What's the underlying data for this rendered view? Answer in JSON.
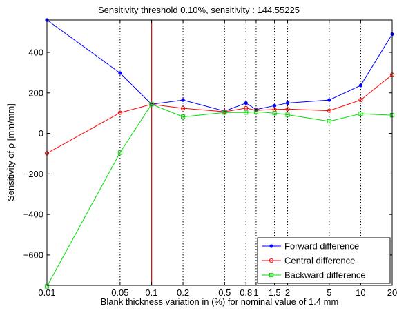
{
  "chart_data": {
    "type": "line",
    "title": "Sensitivity threshold  0.10%, sensitivity : 144.55225",
    "xlabel": "Blank thickness variation in (%) for  nominal value of 1.4 mm",
    "ylabel": "Sensitivity of ρ [mm/mm]",
    "x_scale": "log",
    "xlim": [
      0.01,
      20
    ],
    "ylim": [
      -750,
      560
    ],
    "x_ticks": [
      0.01,
      0.05,
      0.1,
      0.2,
      0.5,
      0.8,
      1,
      1.5,
      2,
      5,
      10,
      20
    ],
    "x_tick_labels": [
      "0.01",
      "0.05",
      "0.1",
      "0.2",
      "0.5",
      "0.8",
      "1",
      "1.5",
      "2",
      "5",
      "10",
      "20"
    ],
    "y_ticks": [
      -600,
      -400,
      -200,
      0,
      200,
      400
    ],
    "y_tick_labels": [
      "−600",
      "−400",
      "−200",
      "0",
      "200",
      "400"
    ],
    "grid": "vertical-dotted",
    "threshold_line": {
      "x": 0.1,
      "color": "#b22222"
    },
    "x": [
      0.01,
      0.05,
      0.1,
      0.2,
      0.5,
      0.8,
      1,
      1.5,
      2,
      5,
      10,
      20
    ],
    "series": [
      {
        "name": "Forward difference",
        "color": "#0000ff",
        "marker": "dot",
        "values": [
          560,
          298,
          144,
          165,
          110,
          150,
          118,
          137,
          150,
          165,
          237,
          490
        ]
      },
      {
        "name": "Central difference",
        "color": "#ff0000",
        "marker": "circle",
        "values": [
          -98,
          102,
          144,
          124,
          107,
          125,
          114,
          118,
          120,
          112,
          165,
          290
        ]
      },
      {
        "name": "Backward difference",
        "color": "#00dd00",
        "marker": "square",
        "values": [
          -755,
          -95,
          144,
          82,
          103,
          103,
          107,
          100,
          92,
          60,
          97,
          90
        ]
      }
    ],
    "legend_position": "bottom-right"
  }
}
